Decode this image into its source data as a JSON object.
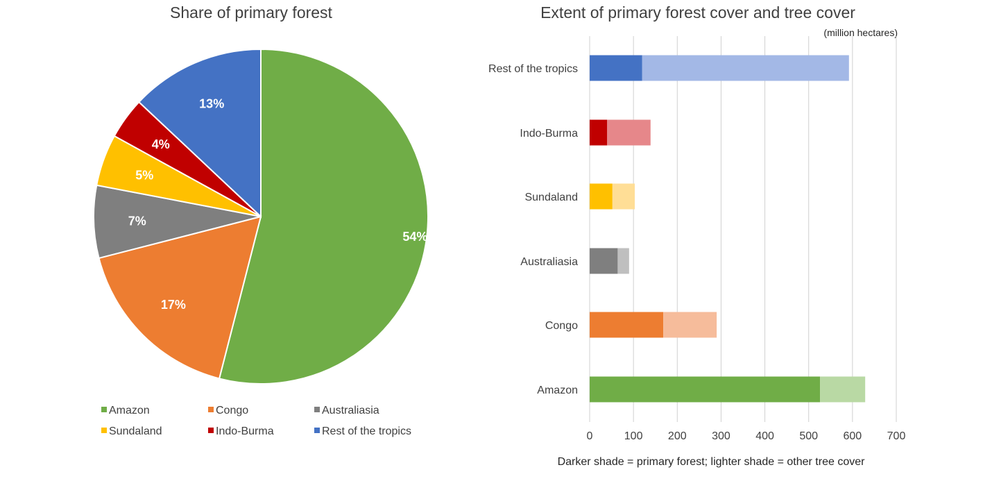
{
  "chart_data": [
    {
      "type": "pie",
      "title": "Share of primary forest",
      "legend_position": "bottom",
      "slices": [
        {
          "label": "Amazon",
          "value": 54,
          "display": "54%",
          "color": "#70ad47"
        },
        {
          "label": "Congo",
          "value": 17,
          "display": "17%",
          "color": "#ed7d31"
        },
        {
          "label": "Australiasia",
          "value": 7,
          "display": "7%",
          "color": "#7f7f7f"
        },
        {
          "label": "Sundaland",
          "value": 5,
          "display": "5%",
          "color": "#ffc000"
        },
        {
          "label": "Indo-Burma",
          "value": 4,
          "display": "4%",
          "color": "#c00000"
        },
        {
          "label": "Rest of the tropics",
          "value": 13,
          "display": "13%",
          "color": "#4472c4"
        }
      ]
    },
    {
      "type": "bar",
      "orientation": "horizontal",
      "stacked": true,
      "title": "Extent of primary forest cover and tree cover",
      "unit": "(million hectares)",
      "note": "Darker shade = primary forest; lighter shade = other tree cover",
      "xlim": [
        0,
        700
      ],
      "xticks": [
        0,
        100,
        200,
        300,
        400,
        500,
        600,
        700
      ],
      "grid": true,
      "categories": [
        "Rest of the tropics",
        "Indo-Burma",
        "Sundaland",
        "Australiasia",
        "Congo",
        "Amazon"
      ],
      "series": [
        {
          "values": [
            120,
            40,
            52,
            64,
            168,
            526
          ],
          "colors": [
            "#4472c4",
            "#c00000",
            "#ffc000",
            "#7f7f7f",
            "#ed7d31",
            "#70ad47"
          ]
        },
        {
          "values": [
            472,
            99,
            51,
            26,
            122,
            103
          ],
          "colors": [
            "#a3b8e6",
            "#e6878a",
            "#ffde96",
            "#bfbfbf",
            "#f6bc9b",
            "#b9d9a4"
          ]
        }
      ]
    }
  ]
}
